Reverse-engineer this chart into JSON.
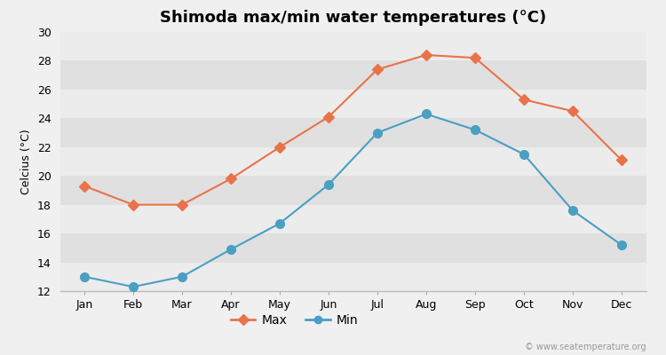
{
  "title": "Shimoda max/min water temperatures (°C)",
  "ylabel": "Celcius (°C)",
  "months": [
    "Jan",
    "Feb",
    "Mar",
    "Apr",
    "May",
    "Jun",
    "Jul",
    "Aug",
    "Sep",
    "Oct",
    "Nov",
    "Dec"
  ],
  "max_temps": [
    19.3,
    18.0,
    18.0,
    19.8,
    22.0,
    24.1,
    27.4,
    28.4,
    28.2,
    25.3,
    24.5,
    21.1
  ],
  "min_temps": [
    13.0,
    12.3,
    13.0,
    14.9,
    16.7,
    19.4,
    23.0,
    24.3,
    23.2,
    21.5,
    17.6,
    15.2
  ],
  "max_color": "#e8734a",
  "min_color": "#4a9fc4",
  "background_color": "#f0f0f0",
  "plot_bg_color": "#e8e8e8",
  "stripe_color_light": "#ececec",
  "stripe_color_dark": "#e0e0e0",
  "ylim": [
    12,
    30
  ],
  "yticks": [
    12,
    14,
    16,
    18,
    20,
    22,
    24,
    26,
    28,
    30
  ],
  "legend_labels": [
    "Max",
    "Min"
  ],
  "watermark": "© www.seatemperature.org",
  "title_fontsize": 13,
  "label_fontsize": 9,
  "tick_fontsize": 9,
  "max_marker": "D",
  "min_marker": "o",
  "max_marker_size": 6,
  "min_marker_size": 7,
  "line_width": 1.5
}
